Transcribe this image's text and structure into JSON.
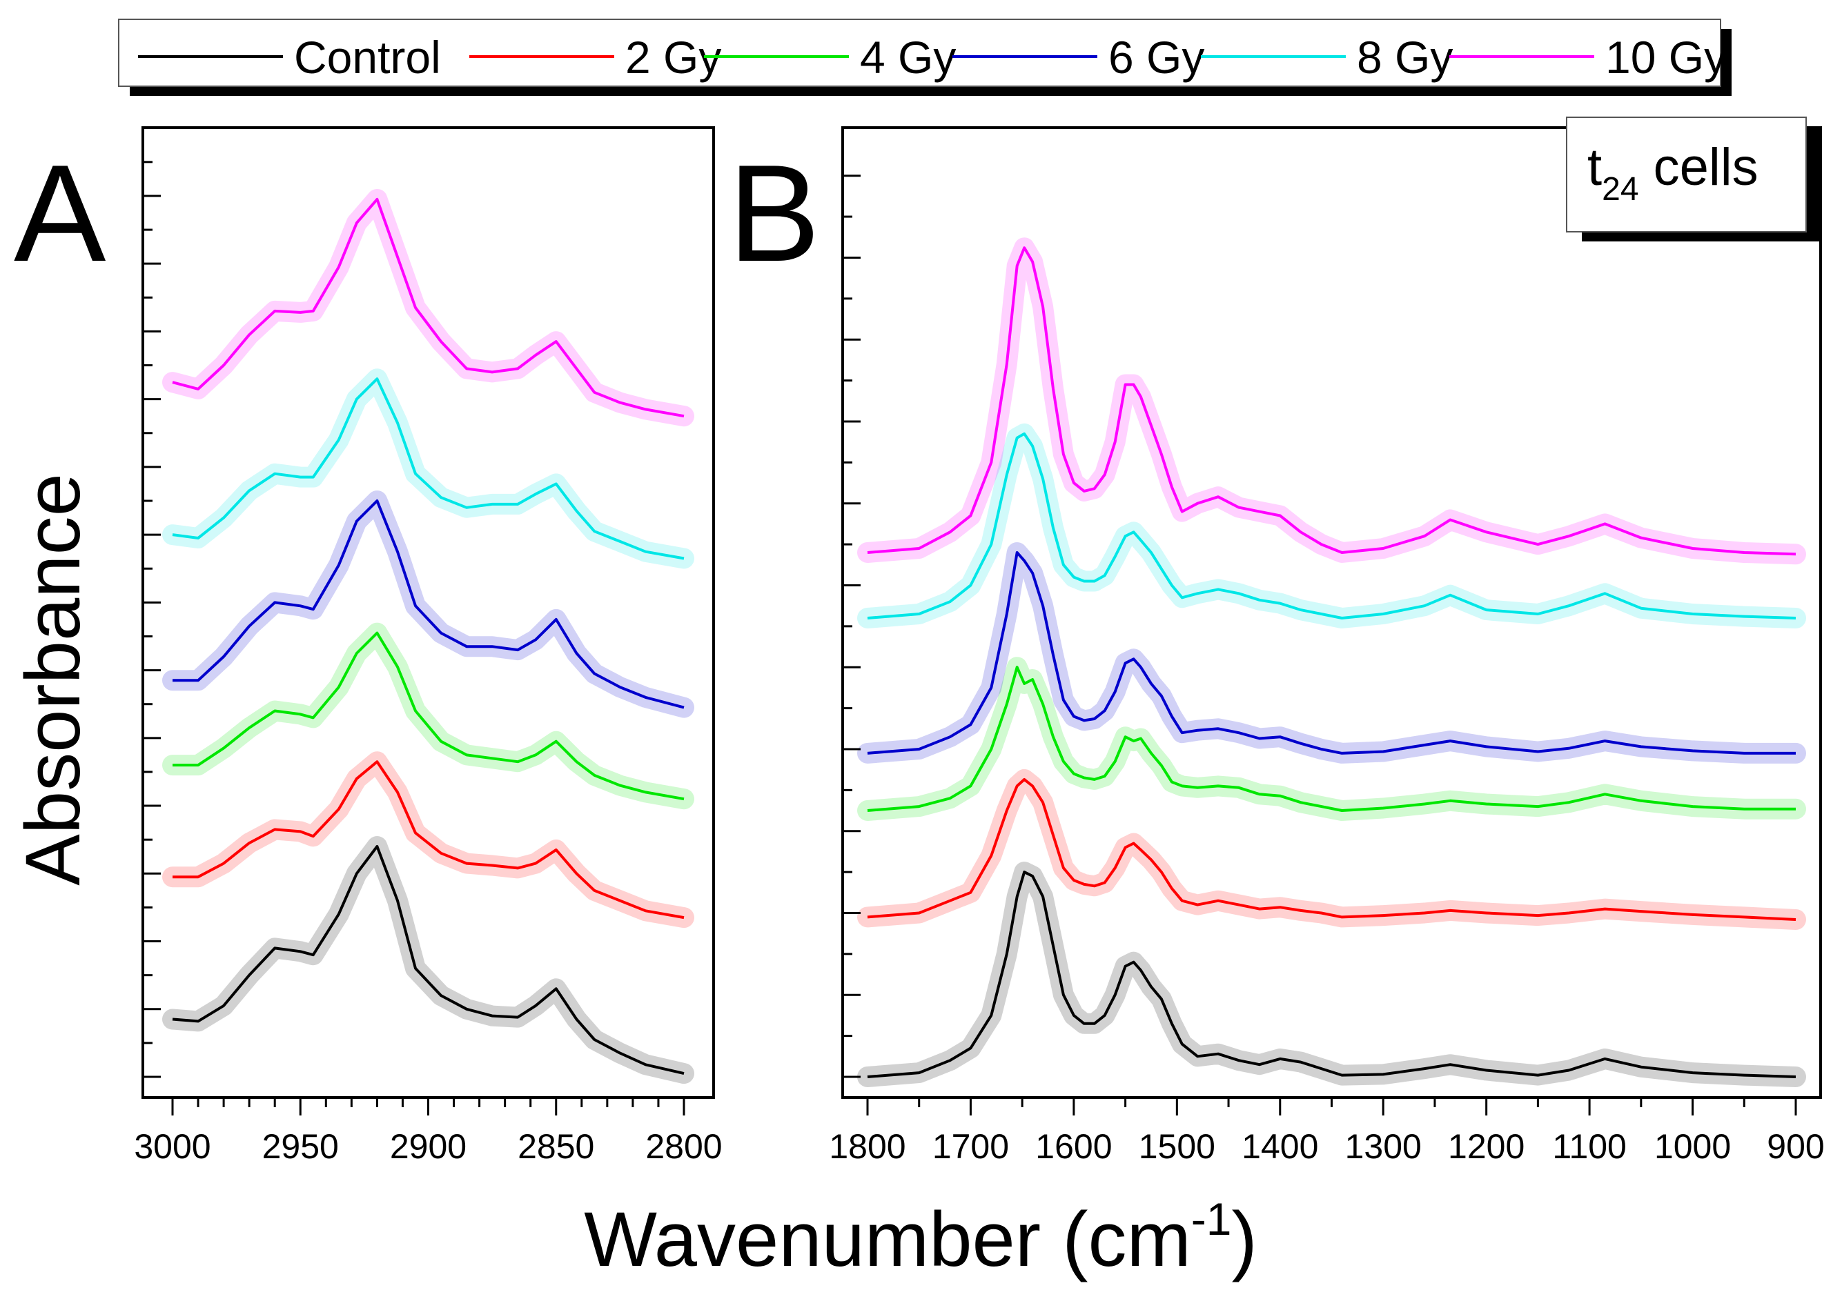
{
  "figure": {
    "xlabel_main": "Wavenumber (cm",
    "xlabel_sup": "-1",
    "xlabel_close": ")",
    "ylabel": "Absorbance"
  },
  "legend": {
    "entries": [
      {
        "label": "Control",
        "color": "#000000"
      },
      {
        "label": "2 Gy",
        "color": "#ff0000"
      },
      {
        "label": "4 Gy",
        "color": "#00e600"
      },
      {
        "label": "6 Gy",
        "color": "#0000cc"
      },
      {
        "label": "8 Gy",
        "color": "#00e6e6"
      },
      {
        "label": "10 Gy",
        "color": "#ff00ff"
      }
    ]
  },
  "chart_data": [
    {
      "panel": "A",
      "type": "line",
      "panel_letter": "A",
      "xlabel": "Wavenumber (cm-1)",
      "ylabel": "Absorbance",
      "xlim": [
        3000,
        2800
      ],
      "xticks": [
        3000,
        2950,
        2900,
        2850,
        2800
      ],
      "ylim": [
        0,
        13.6
      ],
      "y_tick_labels_shown": false,
      "series": [
        {
          "name": "Control",
          "color": "#000000",
          "offset": 0.0,
          "x": [
            3000,
            2990,
            2980,
            2970,
            2960,
            2950,
            2945,
            2935,
            2928,
            2920,
            2912,
            2905,
            2895,
            2885,
            2875,
            2865,
            2858,
            2850,
            2842,
            2835,
            2825,
            2815,
            2800
          ],
          "y": [
            0.85,
            0.82,
            1.05,
            1.5,
            1.9,
            1.85,
            1.8,
            2.4,
            3.0,
            3.4,
            2.6,
            1.6,
            1.2,
            1.0,
            0.9,
            0.88,
            1.05,
            1.3,
            0.85,
            0.55,
            0.35,
            0.18,
            0.05
          ]
        },
        {
          "name": "2 Gy",
          "color": "#ff0000",
          "offset": 2.1,
          "x": [
            3000,
            2990,
            2980,
            2970,
            2960,
            2950,
            2945,
            2935,
            2928,
            2920,
            2912,
            2905,
            2895,
            2885,
            2875,
            2865,
            2858,
            2850,
            2842,
            2835,
            2825,
            2815,
            2800
          ],
          "y": [
            0.85,
            0.85,
            1.05,
            1.35,
            1.55,
            1.52,
            1.45,
            1.85,
            2.3,
            2.55,
            2.1,
            1.5,
            1.2,
            1.05,
            1.02,
            0.98,
            1.05,
            1.25,
            0.9,
            0.65,
            0.5,
            0.35,
            0.25
          ]
        },
        {
          "name": "4 Gy",
          "color": "#00e600",
          "offset": 4.0,
          "x": [
            3000,
            2990,
            2980,
            2970,
            2960,
            2950,
            2945,
            2935,
            2928,
            2920,
            2912,
            2905,
            2895,
            2885,
            2875,
            2865,
            2858,
            2850,
            2842,
            2835,
            2825,
            2815,
            2800
          ],
          "y": [
            0.6,
            0.6,
            0.85,
            1.15,
            1.4,
            1.35,
            1.3,
            1.75,
            2.25,
            2.55,
            2.05,
            1.4,
            0.95,
            0.75,
            0.7,
            0.65,
            0.75,
            0.95,
            0.65,
            0.45,
            0.3,
            0.2,
            0.1
          ]
        },
        {
          "name": "6 Gy",
          "color": "#0000cc",
          "offset": 5.4,
          "x": [
            3000,
            2990,
            2980,
            2970,
            2960,
            2950,
            2945,
            2935,
            2928,
            2920,
            2912,
            2905,
            2895,
            2885,
            2875,
            2865,
            2858,
            2850,
            2842,
            2835,
            2825,
            2815,
            2800
          ],
          "y": [
            0.45,
            0.45,
            0.8,
            1.25,
            1.6,
            1.55,
            1.5,
            2.15,
            2.8,
            3.1,
            2.35,
            1.55,
            1.15,
            0.95,
            0.95,
            0.9,
            1.05,
            1.35,
            0.85,
            0.55,
            0.35,
            0.2,
            0.05
          ]
        },
        {
          "name": "8 Gy",
          "color": "#00e6e6",
          "offset": 7.8,
          "x": [
            3000,
            2990,
            2980,
            2970,
            2960,
            2950,
            2945,
            2935,
            2928,
            2920,
            2912,
            2905,
            2895,
            2885,
            2875,
            2865,
            2858,
            2850,
            2842,
            2835,
            2825,
            2815,
            2800
          ],
          "y": [
            0.2,
            0.15,
            0.45,
            0.85,
            1.1,
            1.05,
            1.05,
            1.6,
            2.2,
            2.5,
            1.85,
            1.1,
            0.75,
            0.6,
            0.65,
            0.65,
            0.8,
            0.95,
            0.55,
            0.25,
            0.1,
            -0.05,
            -0.15
          ]
        },
        {
          "name": "10 Gy",
          "color": "#ff00ff",
          "offset": 9.9,
          "x": [
            3000,
            2990,
            2980,
            2970,
            2960,
            2950,
            2945,
            2935,
            2928,
            2920,
            2912,
            2905,
            2895,
            2885,
            2875,
            2865,
            2858,
            2850,
            2842,
            2835,
            2825,
            2815,
            2800
          ],
          "y": [
            0.35,
            0.25,
            0.6,
            1.05,
            1.4,
            1.38,
            1.4,
            2.05,
            2.7,
            3.05,
            2.2,
            1.45,
            0.95,
            0.55,
            0.5,
            0.55,
            0.75,
            0.95,
            0.55,
            0.2,
            0.05,
            -0.05,
            -0.15
          ]
        }
      ]
    },
    {
      "panel": "B",
      "type": "line",
      "panel_letter": "B",
      "annotation_main": "t",
      "annotation_sub": "24",
      "annotation_rest": " cells",
      "xlabel": "Wavenumber (cm-1)",
      "ylabel": "Absorbance",
      "xlim": [
        1800,
        900
      ],
      "xticks": [
        1800,
        1700,
        1600,
        1500,
        1400,
        1300,
        1200,
        1100,
        1000,
        900
      ],
      "ylim": [
        0,
        11.25
      ],
      "y_tick_labels_shown": false,
      "series": [
        {
          "name": "Control",
          "color": "#000000",
          "offset": 0.0,
          "x": [
            1800,
            1750,
            1720,
            1700,
            1680,
            1665,
            1655,
            1648,
            1640,
            1630,
            1620,
            1610,
            1600,
            1590,
            1580,
            1570,
            1560,
            1550,
            1542,
            1535,
            1525,
            1515,
            1505,
            1495,
            1480,
            1460,
            1440,
            1420,
            1400,
            1380,
            1360,
            1340,
            1300,
            1260,
            1235,
            1200,
            1150,
            1120,
            1085,
            1050,
            1000,
            950,
            900
          ],
          "y": [
            0.0,
            0.05,
            0.2,
            0.35,
            0.75,
            1.5,
            2.2,
            2.5,
            2.45,
            2.2,
            1.6,
            1.0,
            0.75,
            0.65,
            0.65,
            0.75,
            1.0,
            1.35,
            1.4,
            1.3,
            1.1,
            0.95,
            0.65,
            0.4,
            0.25,
            0.28,
            0.2,
            0.15,
            0.22,
            0.18,
            0.1,
            0.02,
            0.03,
            0.1,
            0.15,
            0.08,
            0.02,
            0.08,
            0.22,
            0.12,
            0.05,
            0.02,
            0.0
          ]
        },
        {
          "name": "2 Gy",
          "color": "#ff0000",
          "offset": 1.95,
          "x": [
            1800,
            1750,
            1720,
            1700,
            1680,
            1665,
            1655,
            1648,
            1640,
            1630,
            1620,
            1610,
            1600,
            1590,
            1580,
            1570,
            1560,
            1550,
            1542,
            1535,
            1525,
            1515,
            1505,
            1495,
            1480,
            1460,
            1440,
            1420,
            1400,
            1380,
            1360,
            1340,
            1300,
            1260,
            1235,
            1200,
            1150,
            1120,
            1085,
            1050,
            1000,
            950,
            900
          ],
          "y": [
            0.0,
            0.05,
            0.2,
            0.3,
            0.75,
            1.3,
            1.6,
            1.68,
            1.6,
            1.4,
            1.0,
            0.6,
            0.45,
            0.4,
            0.38,
            0.42,
            0.6,
            0.85,
            0.9,
            0.82,
            0.7,
            0.55,
            0.35,
            0.2,
            0.15,
            0.2,
            0.15,
            0.1,
            0.12,
            0.08,
            0.05,
            0.0,
            0.02,
            0.05,
            0.08,
            0.05,
            0.02,
            0.05,
            0.1,
            0.07,
            0.03,
            0.0,
            -0.03
          ]
        },
        {
          "name": "4 Gy",
          "color": "#00e600",
          "offset": 3.25,
          "x": [
            1800,
            1750,
            1720,
            1700,
            1680,
            1665,
            1655,
            1648,
            1640,
            1630,
            1620,
            1610,
            1600,
            1590,
            1580,
            1570,
            1560,
            1550,
            1542,
            1535,
            1525,
            1515,
            1505,
            1495,
            1480,
            1460,
            1440,
            1420,
            1400,
            1380,
            1360,
            1340,
            1300,
            1260,
            1235,
            1200,
            1150,
            1120,
            1085,
            1050,
            1000,
            950,
            900
          ],
          "y": [
            0.0,
            0.05,
            0.15,
            0.3,
            0.75,
            1.3,
            1.75,
            1.55,
            1.6,
            1.3,
            0.9,
            0.6,
            0.45,
            0.4,
            0.38,
            0.42,
            0.6,
            0.9,
            0.85,
            0.88,
            0.7,
            0.55,
            0.35,
            0.3,
            0.28,
            0.3,
            0.28,
            0.2,
            0.18,
            0.1,
            0.05,
            0.0,
            0.03,
            0.08,
            0.12,
            0.08,
            0.05,
            0.1,
            0.2,
            0.12,
            0.05,
            0.02,
            0.02
          ]
        },
        {
          "name": "6 Gy",
          "color": "#0000cc",
          "offset": 3.95,
          "x": [
            1800,
            1750,
            1720,
            1700,
            1680,
            1665,
            1655,
            1648,
            1640,
            1630,
            1620,
            1610,
            1600,
            1590,
            1580,
            1570,
            1560,
            1550,
            1542,
            1535,
            1525,
            1515,
            1505,
            1495,
            1480,
            1460,
            1440,
            1420,
            1400,
            1380,
            1360,
            1340,
            1300,
            1260,
            1235,
            1200,
            1150,
            1120,
            1085,
            1050,
            1000,
            950,
            900
          ],
          "y": [
            0.0,
            0.05,
            0.2,
            0.35,
            0.8,
            1.7,
            2.45,
            2.35,
            2.2,
            1.8,
            1.2,
            0.65,
            0.45,
            0.4,
            0.42,
            0.52,
            0.75,
            1.1,
            1.15,
            1.05,
            0.85,
            0.7,
            0.45,
            0.25,
            0.28,
            0.3,
            0.25,
            0.18,
            0.2,
            0.12,
            0.05,
            0.0,
            0.02,
            0.1,
            0.15,
            0.08,
            0.02,
            0.06,
            0.15,
            0.08,
            0.03,
            0.0,
            0.0
          ]
        },
        {
          "name": "8 Gy",
          "color": "#00e6e6",
          "offset": 5.6,
          "x": [
            1800,
            1750,
            1720,
            1700,
            1680,
            1665,
            1655,
            1648,
            1640,
            1630,
            1620,
            1610,
            1600,
            1590,
            1580,
            1570,
            1560,
            1550,
            1542,
            1535,
            1525,
            1515,
            1505,
            1495,
            1480,
            1460,
            1440,
            1420,
            1400,
            1380,
            1360,
            1340,
            1300,
            1260,
            1235,
            1200,
            1150,
            1120,
            1085,
            1050,
            1000,
            950,
            900
          ],
          "y": [
            0.0,
            0.05,
            0.2,
            0.4,
            0.9,
            1.75,
            2.2,
            2.25,
            2.1,
            1.7,
            1.1,
            0.65,
            0.5,
            0.45,
            0.45,
            0.52,
            0.75,
            1.0,
            1.05,
            0.95,
            0.8,
            0.6,
            0.4,
            0.25,
            0.3,
            0.35,
            0.3,
            0.22,
            0.18,
            0.1,
            0.05,
            0.0,
            0.05,
            0.15,
            0.28,
            0.1,
            0.05,
            0.15,
            0.3,
            0.12,
            0.05,
            0.02,
            0.0
          ]
        },
        {
          "name": "10 Gy",
          "color": "#ff00ff",
          "offset": 6.4,
          "x": [
            1800,
            1750,
            1720,
            1700,
            1680,
            1665,
            1655,
            1648,
            1640,
            1630,
            1620,
            1610,
            1600,
            1590,
            1580,
            1570,
            1560,
            1550,
            1542,
            1535,
            1525,
            1515,
            1505,
            1495,
            1480,
            1460,
            1440,
            1420,
            1400,
            1380,
            1360,
            1340,
            1300,
            1260,
            1235,
            1200,
            1150,
            1120,
            1085,
            1050,
            1000,
            950,
            900
          ],
          "y": [
            0.0,
            0.05,
            0.25,
            0.45,
            1.1,
            2.3,
            3.5,
            3.72,
            3.55,
            3.0,
            2.0,
            1.2,
            0.85,
            0.75,
            0.78,
            0.95,
            1.35,
            2.05,
            2.05,
            1.9,
            1.55,
            1.2,
            0.8,
            0.5,
            0.6,
            0.68,
            0.55,
            0.5,
            0.45,
            0.25,
            0.1,
            0.0,
            0.05,
            0.2,
            0.4,
            0.25,
            0.1,
            0.2,
            0.35,
            0.18,
            0.05,
            0.0,
            -0.02
          ]
        }
      ]
    }
  ]
}
